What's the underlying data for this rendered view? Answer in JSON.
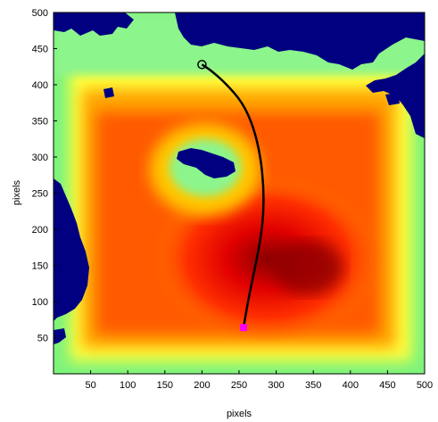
{
  "chart_data": {
    "type": "heatmap",
    "title": "",
    "xlabel": "pixels",
    "ylabel": "pixels",
    "xlim": [
      0,
      500
    ],
    "ylim": [
      0,
      500
    ],
    "xticks": [
      50,
      100,
      150,
      200,
      250,
      300,
      350,
      400,
      450,
      500
    ],
    "yticks": [
      50,
      100,
      150,
      200,
      250,
      300,
      350,
      400,
      450,
      500
    ],
    "grid": false,
    "colormap": "distance-to-obstacle (dark red far, yellow/green near, blue obstacle)",
    "colors": {
      "obstacle": "#000080",
      "far": "#8b0000",
      "mid": "#ff2a00",
      "near_orange": "#ffa500",
      "near_yellow": "#ffff3c",
      "edge_green": "#78f578",
      "path": "#000000",
      "start_marker": "#ff00ff",
      "goal_marker": "#000000"
    },
    "start": {
      "x": 256,
      "y": 64
    },
    "goal": {
      "x": 200,
      "y": 428
    },
    "path": [
      {
        "x": 256,
        "y": 64
      },
      {
        "x": 262,
        "y": 100
      },
      {
        "x": 270,
        "y": 140
      },
      {
        "x": 278,
        "y": 180
      },
      {
        "x": 283,
        "y": 220
      },
      {
        "x": 283,
        "y": 260
      },
      {
        "x": 279,
        "y": 300
      },
      {
        "x": 270,
        "y": 340
      },
      {
        "x": 255,
        "y": 375
      },
      {
        "x": 232,
        "y": 402
      },
      {
        "x": 212,
        "y": 420
      },
      {
        "x": 200,
        "y": 428
      }
    ]
  }
}
